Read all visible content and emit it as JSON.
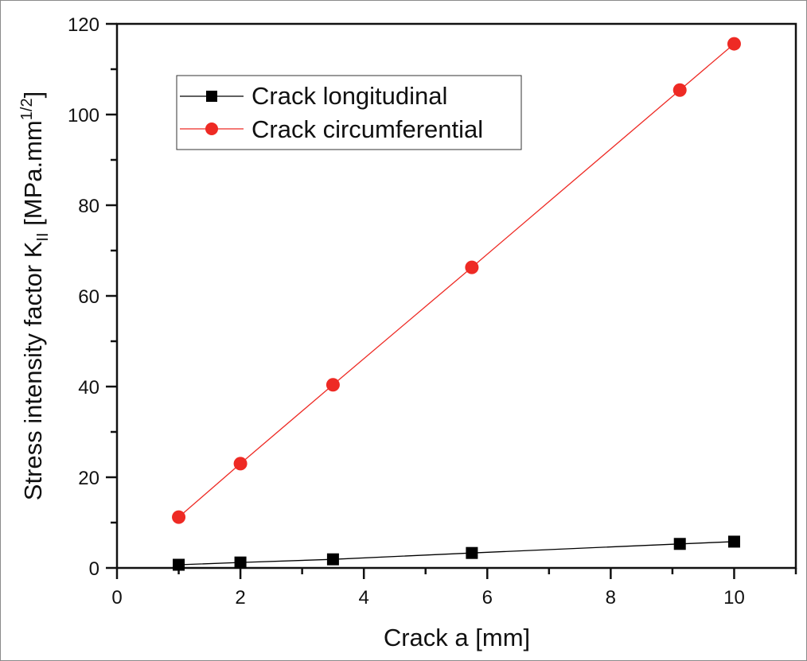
{
  "chart_data": {
    "type": "line",
    "title": "",
    "xlabel": "Crack  a  [mm]",
    "ylabel": "Stress intensity factor K_II [MPa.mm^1/2]",
    "ylabel_parts": {
      "main": "Stress intensity factor K",
      "subscript": "II",
      "unit_open": " [MPa.mm",
      "superscript": "1/2",
      "unit_close": "]"
    },
    "xlim": [
      0,
      11
    ],
    "ylim": [
      0,
      120
    ],
    "x_ticks": [
      0,
      2,
      4,
      6,
      8,
      10
    ],
    "x_tick_labels": [
      "0",
      "2",
      "4",
      "6",
      "8",
      "10"
    ],
    "x_minor_ticks": [
      1,
      3,
      5,
      7,
      9,
      11
    ],
    "y_ticks": [
      0,
      20,
      40,
      60,
      80,
      100,
      120
    ],
    "y_tick_labels": [
      "0",
      "20",
      "40",
      "60",
      "80",
      "100",
      "120"
    ],
    "y_minor_ticks": [
      10,
      30,
      50,
      70,
      90,
      110
    ],
    "grid": false,
    "legend_position": "upper left",
    "series": [
      {
        "name": "Crack longitudinal",
        "color": "#000000",
        "marker": "square",
        "x": [
          1,
          2,
          3.5,
          5.75,
          9.12,
          10
        ],
        "values": [
          0.7,
          1.2,
          1.9,
          3.3,
          5.3,
          5.8
        ]
      },
      {
        "name": "Crack circumferential",
        "color": "#ee2a24",
        "marker": "circle",
        "x": [
          1,
          2,
          3.5,
          5.75,
          9.12,
          10
        ],
        "values": [
          11.2,
          23.0,
          40.4,
          66.3,
          105.4,
          115.6
        ]
      }
    ]
  },
  "legend": {
    "items": [
      {
        "label": "Crack longitudinal"
      },
      {
        "label": "Crack circumferential"
      }
    ]
  }
}
